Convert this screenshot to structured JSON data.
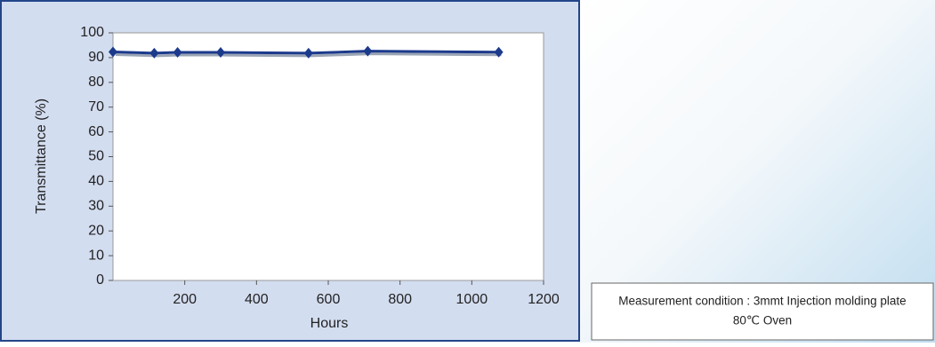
{
  "chart_data": {
    "type": "line",
    "x_label": "Hours",
    "y_label": "Transmittance (%)",
    "xlim": [
      0,
      1200
    ],
    "xticks": [
      200,
      400,
      600,
      800,
      1000,
      1200
    ],
    "ylim": [
      0,
      100
    ],
    "yticks": [
      0,
      10,
      20,
      30,
      40,
      50,
      60,
      70,
      80,
      90,
      100
    ],
    "series": [
      {
        "color": "#1c3a8c",
        "x": [
          0,
          115,
          180,
          300,
          545,
          710,
          1075
        ],
        "values": [
          92.3,
          91.8,
          92.1,
          92.1,
          91.8,
          92.6,
          92.2
        ]
      }
    ]
  },
  "note": {
    "line1": "Measurement condition : 3mmt Injection molding plate",
    "line2": "80℃ Oven"
  }
}
